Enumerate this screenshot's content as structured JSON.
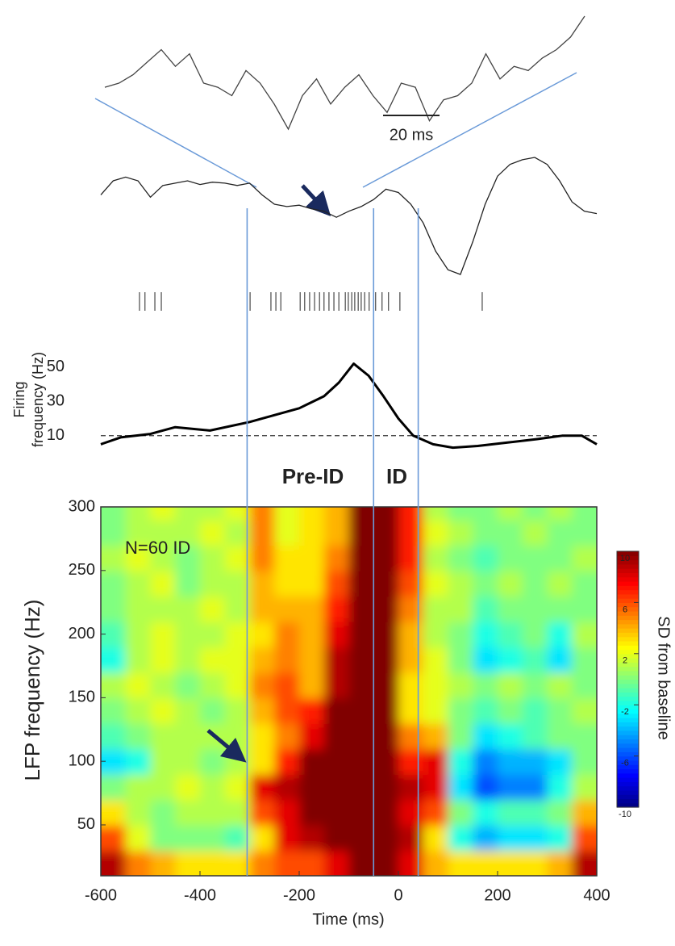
{
  "chart_data": [
    {
      "type": "trace",
      "x": [
        -230,
        -225,
        -220,
        -215,
        -210,
        -205,
        -200,
        -195,
        -190,
        -185,
        -180,
        -175,
        -170,
        -165,
        -160,
        -155,
        -150,
        -145,
        -140,
        -135,
        -130,
        -125,
        -120,
        -115,
        -110,
        -105,
        -100,
        -95,
        -90,
        -85,
        -80,
        -75,
        -70,
        -65,
        -60
      ],
      "values": [
        0,
        0.5,
        1.5,
        3,
        4.5,
        2.5,
        4,
        0.5,
        0,
        -1,
        2,
        0.5,
        -2,
        -5,
        -1,
        1,
        -2,
        0,
        1.5,
        -1,
        -3,
        0.5,
        0,
        -4,
        -1.5,
        -1,
        0.5,
        4,
        1,
        2.5,
        2,
        3.5,
        4.5,
        6,
        8.5
      ],
      "color": "#444444",
      "xlim": [
        -230,
        -60
      ],
      "scale_bar": {
        "value": 20,
        "label": "20 ms"
      }
    },
    {
      "type": "trace",
      "x": [
        -600,
        -575,
        -550,
        -525,
        -500,
        -475,
        -450,
        -425,
        -400,
        -375,
        -350,
        -325,
        -300,
        -275,
        -250,
        -225,
        -200,
        -175,
        -150,
        -125,
        -100,
        -75,
        -50,
        -25,
        0,
        25,
        50,
        75,
        100,
        125,
        150,
        175,
        200,
        225,
        250,
        275,
        300,
        325,
        350,
        375,
        400
      ],
      "values": [
        3,
        6,
        6.8,
        6,
        2.5,
        5,
        5.5,
        6,
        5.2,
        5.7,
        5.5,
        5,
        5.5,
        3,
        1,
        0.5,
        0.8,
        0,
        -0.5,
        -1.8,
        -0.5,
        0.5,
        2,
        4.2,
        3.5,
        1,
        -3,
        -9,
        -13,
        -14,
        -7,
        1,
        7,
        9.5,
        10.5,
        11,
        9.5,
        6,
        1.5,
        -0.5,
        -1
      ],
      "color": "#222222",
      "xlim": [
        -600,
        400
      ]
    },
    {
      "type": "raster",
      "values": [
        -522,
        -511,
        -491,
        -478,
        -299,
        -257,
        -247,
        -237,
        -198,
        -189,
        -179,
        -169,
        -159,
        -150,
        -140,
        -130,
        -120,
        -107,
        -101,
        -94,
        -88,
        -81,
        -75,
        -68,
        -59,
        -46,
        -33,
        -20,
        3,
        169
      ],
      "color": "#555555",
      "xlim": [
        -600,
        400
      ]
    },
    {
      "type": "line",
      "x": [
        -600,
        -560,
        -500,
        -450,
        -380,
        -300,
        -200,
        -150,
        -120,
        -90,
        -60,
        -30,
        0,
        30,
        70,
        110,
        160,
        220,
        280,
        330,
        370,
        400
      ],
      "values": [
        5,
        9,
        11,
        15,
        13,
        18,
        26,
        33,
        41,
        52,
        45,
        33,
        20,
        10,
        5,
        3,
        4,
        6,
        8,
        10,
        10,
        5
      ],
      "color": "#000000",
      "xlim": [
        -600,
        400
      ],
      "ylim": [
        0,
        57
      ],
      "yticks": [
        10,
        30,
        50
      ],
      "ylabel": [
        "Firing",
        "frequency (Hz)"
      ],
      "reference_line": 10
    },
    {
      "type": "heatmap",
      "colormap": "jet",
      "x": [
        -575,
        -525,
        -475,
        -425,
        -375,
        -325,
        -275,
        -225,
        -175,
        -125,
        -75,
        -25,
        25,
        75,
        125,
        175,
        225,
        275,
        325,
        375
      ],
      "y": [
        20,
        40,
        60,
        80,
        100,
        120,
        140,
        160,
        180,
        200,
        220,
        240,
        260,
        280,
        300
      ],
      "z": [
        [
          9,
          5,
          4,
          3,
          3,
          3,
          5,
          6,
          6,
          8,
          10,
          10,
          8,
          4,
          3,
          3,
          3,
          3,
          4,
          9
        ],
        [
          6,
          2,
          0,
          0,
          0,
          -1,
          3,
          8,
          9,
          10,
          10,
          10,
          9,
          3,
          -2,
          -4,
          -3,
          -3,
          -2,
          6
        ],
        [
          3,
          1,
          0,
          1,
          1,
          1,
          6,
          8,
          10,
          10,
          10,
          10,
          8,
          6,
          0,
          -2,
          -1,
          -1,
          0,
          4
        ],
        [
          0,
          1,
          1,
          2,
          1,
          2,
          8,
          9,
          10,
          10,
          10,
          10,
          9,
          8,
          -3,
          -6,
          -5,
          -5,
          -2,
          1
        ],
        [
          -3,
          -2,
          1,
          1,
          0,
          1,
          3,
          7,
          10,
          10,
          10,
          10,
          7,
          8,
          -2,
          -5,
          -4,
          -4,
          -3,
          0
        ],
        [
          -1,
          0,
          1,
          1,
          1,
          1,
          3,
          5,
          8,
          10,
          10,
          10,
          5,
          4,
          0,
          -3,
          -2,
          -1,
          0,
          0
        ],
        [
          0,
          1,
          2,
          1,
          0,
          1,
          4,
          6,
          7,
          10,
          10,
          10,
          3,
          2,
          0,
          -1,
          0,
          -1,
          0,
          1
        ],
        [
          1,
          2,
          1,
          0,
          1,
          2,
          5,
          6,
          4,
          9,
          10,
          10,
          3,
          2,
          1,
          0,
          1,
          0,
          1,
          0
        ],
        [
          -2,
          1,
          2,
          1,
          2,
          2,
          4,
          5,
          4,
          9,
          10,
          10,
          4,
          2,
          0,
          -3,
          -2,
          -1,
          -3,
          0
        ],
        [
          -1,
          1,
          2,
          1,
          1,
          2,
          3,
          5,
          4,
          8,
          10,
          10,
          4,
          1,
          0,
          -2,
          -1,
          0,
          -2,
          1
        ],
        [
          0,
          1,
          1,
          1,
          2,
          1,
          4,
          4,
          4,
          7,
          10,
          10,
          5,
          1,
          1,
          -1,
          0,
          0,
          0,
          0
        ],
        [
          0,
          1,
          2,
          0,
          1,
          1,
          4,
          3,
          3,
          6,
          10,
          10,
          6,
          2,
          1,
          0,
          1,
          0,
          1,
          0
        ],
        [
          1,
          2,
          1,
          0,
          1,
          2,
          5,
          3,
          3,
          5,
          10,
          10,
          7,
          1,
          0,
          -1,
          0,
          0,
          0,
          1
        ],
        [
          0,
          1,
          1,
          1,
          2,
          1,
          5,
          2,
          3,
          4,
          10,
          10,
          7,
          2,
          1,
          0,
          0,
          1,
          0,
          0
        ],
        [
          0,
          1,
          2,
          1,
          1,
          2,
          5,
          2,
          3,
          4,
          10,
          10,
          7,
          1,
          0,
          0,
          1,
          0,
          1,
          0
        ]
      ],
      "xlim": [
        -600,
        400
      ],
      "xticks": [
        -600,
        -400,
        -200,
        0,
        200,
        400
      ],
      "ylim": [
        10,
        300
      ],
      "yticks": [
        50,
        100,
        150,
        200,
        250,
        300
      ],
      "xlabel": "Time (ms)",
      "ylabel": "LFP frequency (Hz)",
      "annotation": "N=60 ID",
      "colorbar": {
        "lim": [
          -10,
          10
        ],
        "ticks": [
          10,
          6,
          2,
          -2,
          -6,
          -10
        ],
        "label": "SD  from baseline"
      },
      "events": [
        -305,
        -50,
        40
      ],
      "event_color": "#6a9ad8",
      "event_labels": [
        "Pre-ID",
        "ID"
      ]
    }
  ]
}
